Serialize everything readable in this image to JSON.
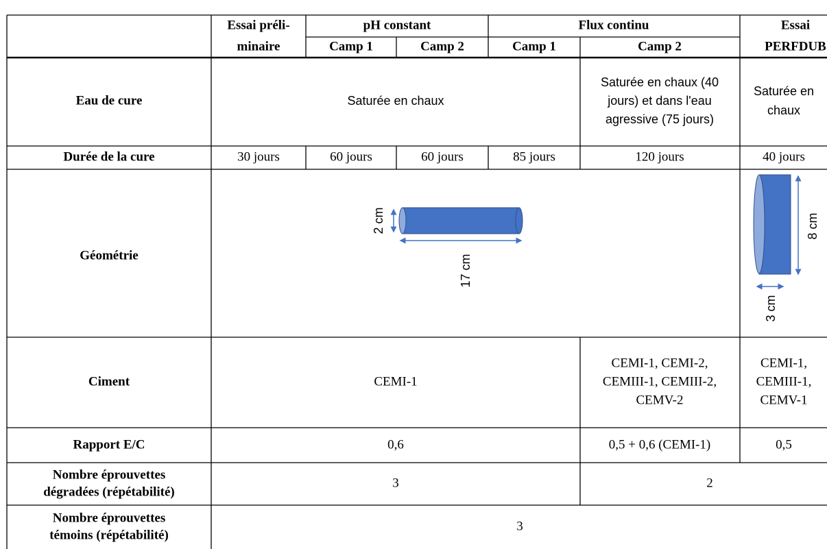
{
  "header": {
    "essai_preliminaire": [
      "Essai préli-",
      "minaire"
    ],
    "ph_constant": "pH constant",
    "flux_continu": "Flux continu",
    "essai_perfdub": [
      "Essai",
      "PERFDUB"
    ],
    "camps": [
      "Camp 1",
      "Camp 2",
      "Camp 1",
      "Camp 2"
    ]
  },
  "rows": {
    "eau_de_cure": {
      "label": "Eau de cure",
      "common": "Saturée en chaux",
      "flux_camp2": [
        "Saturée en chaux (40",
        "jours) et dans l'eau",
        "agressive (75 jours)"
      ],
      "perfdub": [
        "Saturée en",
        "chaux"
      ]
    },
    "duree": {
      "label": "Durée de la cure",
      "cells": [
        "30 jours",
        "60 jours",
        "60 jours",
        "85 jours",
        "120 jours",
        "40 jours"
      ]
    },
    "geometrie": {
      "label": "Géométrie",
      "cylinder_diameter": "2 cm",
      "cylinder_length": "17 cm",
      "disc_height": "8 cm",
      "disc_thickness": "3 cm"
    },
    "ciment": {
      "label": "Ciment",
      "common": "CEMI-1",
      "flux_camp2": [
        "CEMI-1, CEMI-2,",
        "CEMIII-1, CEMIII-2,",
        "CEMV-2"
      ],
      "perfdub": [
        "CEMI-1,",
        "CEMIII-1,",
        "CEMV-1"
      ]
    },
    "rapport": {
      "label": "Rapport E/C",
      "common": "0,6",
      "flux_camp2": "0,5 + 0,6  (CEMI-1)",
      "perfdub": "0,5"
    },
    "degradees": {
      "label": [
        "Nombre éprouvettes",
        "dégradées (répétabilité)"
      ],
      "common": "3",
      "flux_perfdub": "2"
    },
    "temoins": {
      "label": [
        "Nombre éprouvettes",
        "témoins (répétabilité)"
      ],
      "all": "3"
    }
  }
}
